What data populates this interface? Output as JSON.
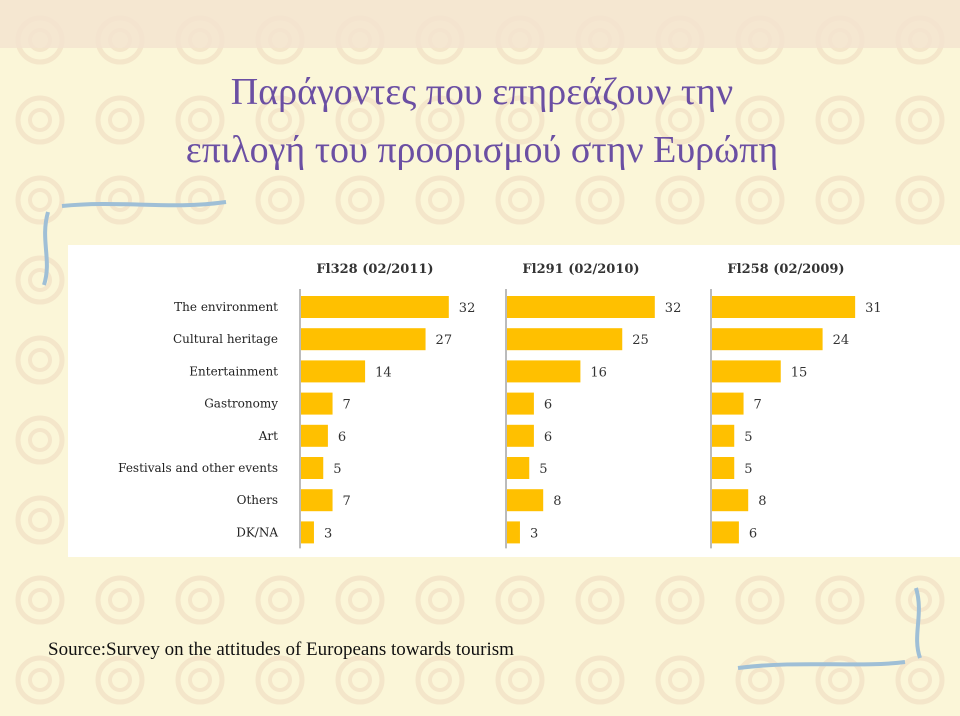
{
  "title": [
    "Παράγοντες που επηρεάζουν την",
    "επιλογή του προορισμού στην Ευρώπη"
  ],
  "source": "Source:Survey on the attitudes of Europeans towards tourism",
  "chart_data": [
    {
      "type": "bar",
      "orientation": "horizontal",
      "title": "Fl328 (02/2011)",
      "color": "#ffc000",
      "categories": [
        "The environment",
        "Cultural heritage",
        "Entertainment",
        "Gastronomy",
        "Art",
        "Festivals and other events",
        "Others",
        "DK/NA"
      ],
      "values": [
        32,
        27,
        14,
        7,
        6,
        5,
        7,
        3
      ]
    },
    {
      "type": "bar",
      "orientation": "horizontal",
      "title": "Fl291 (02/2010)",
      "color": "#ffc000",
      "values": [
        32,
        25,
        16,
        6,
        6,
        5,
        8,
        3
      ]
    },
    {
      "type": "bar",
      "orientation": "horizontal",
      "title": "Fl258 (02/2009)",
      "color": "#ffc000",
      "values": [
        31,
        24,
        15,
        7,
        5,
        5,
        8,
        6
      ]
    }
  ]
}
